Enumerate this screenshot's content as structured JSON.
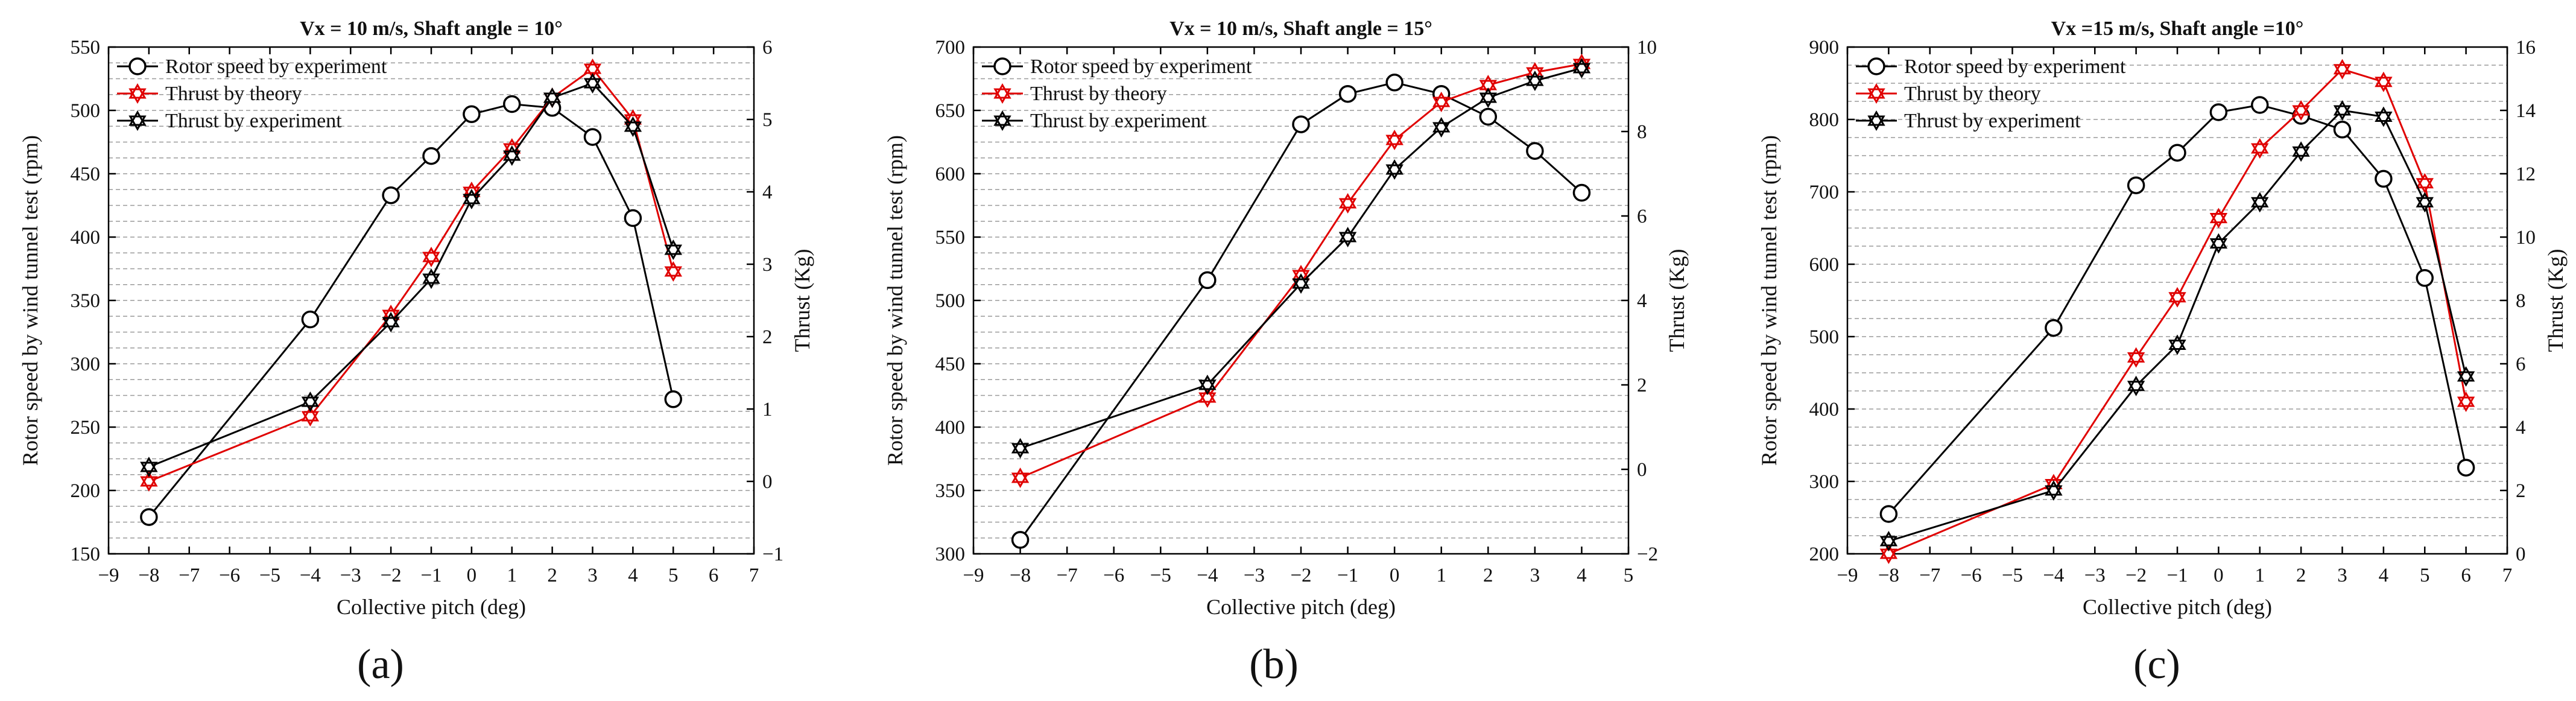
{
  "figure": {
    "captions": [
      "(a)",
      "(b)",
      "(c)"
    ]
  },
  "chart_data": [
    {
      "type": "line",
      "title": "Vx = 10 m/s, Shaft angle = 10°",
      "xlabel": "Collective pitch (deg)",
      "ylabel": "Rotor speed by wind tunnel test (rpm)",
      "y2label": "Thrust (Kg)",
      "xlim": [
        -9,
        7
      ],
      "xticks": [
        -9,
        -8,
        -7,
        -6,
        -5,
        -4,
        -3,
        -2,
        -1,
        0,
        1,
        2,
        3,
        4,
        5,
        6,
        7
      ],
      "ylim": [
        150,
        550
      ],
      "yticks": [
        150,
        200,
        250,
        300,
        350,
        400,
        450,
        500,
        550
      ],
      "y2lim": [
        -1,
        6
      ],
      "y2ticks": [
        -1,
        0,
        1,
        2,
        3,
        4,
        5,
        6
      ],
      "legend": [
        "Rotor speed by experiment",
        "Thrust by theory",
        "Thrust by experiment"
      ],
      "legend_position": "top-left",
      "grid": "horizontal dashed",
      "x": [
        -8,
        -4,
        -2,
        -1,
        0,
        1,
        2,
        3,
        4,
        5
      ],
      "series": [
        {
          "name": "Rotor speed by experiment",
          "axis": "left",
          "color": "#000000",
          "marker": "circle",
          "values": [
            179,
            335,
            433,
            464,
            497,
            505,
            502,
            479,
            415,
            272
          ]
        },
        {
          "name": "Thrust by theory",
          "axis": "right",
          "color": "#e00000",
          "marker": "star",
          "values": [
            0.0,
            0.9,
            2.3,
            3.1,
            4.0,
            4.6,
            5.3,
            5.7,
            5.0,
            2.9
          ]
        },
        {
          "name": "Thrust by experiment",
          "axis": "right",
          "color": "#000000",
          "marker": "star",
          "values": [
            0.2,
            1.1,
            2.2,
            2.8,
            3.9,
            4.5,
            5.3,
            5.5,
            4.9,
            3.2
          ]
        }
      ]
    },
    {
      "type": "line",
      "title": "Vx = 10 m/s, Shaft angle = 15°",
      "xlabel": "Collective pitch (deg)",
      "ylabel": "Rotor speed by wind tunnel test (rpm)",
      "y2label": "Thrust (Kg)",
      "xlim": [
        -9,
        5
      ],
      "xticks": [
        -9,
        -8,
        -7,
        -6,
        -5,
        -4,
        -3,
        -2,
        -1,
        0,
        1,
        2,
        3,
        4,
        5
      ],
      "ylim": [
        300,
        700
      ],
      "yticks": [
        300,
        350,
        400,
        450,
        500,
        550,
        600,
        650,
        700
      ],
      "y2lim": [
        -2,
        10
      ],
      "y2ticks": [
        -2,
        0,
        2,
        4,
        6,
        8,
        10
      ],
      "legend": [
        "Rotor speed by experiment",
        "Thrust by theory",
        "Thrust by experiment"
      ],
      "legend_position": "top-left",
      "grid": "horizontal dashed",
      "x": [
        -8,
        -4,
        -2,
        -1,
        0,
        1,
        2,
        3,
        4
      ],
      "series": [
        {
          "name": "Rotor speed by experiment",
          "axis": "left",
          "color": "#000000",
          "marker": "circle",
          "values": [
            311,
            516,
            639,
            663,
            672,
            663,
            645,
            618,
            585
          ]
        },
        {
          "name": "Thrust by theory",
          "axis": "right",
          "color": "#e00000",
          "marker": "star",
          "values": [
            -0.2,
            1.7,
            4.6,
            6.3,
            7.8,
            8.7,
            9.1,
            9.4,
            9.6
          ]
        },
        {
          "name": "Thrust by experiment",
          "axis": "right",
          "color": "#000000",
          "marker": "star",
          "values": [
            0.5,
            2.0,
            4.4,
            5.5,
            7.1,
            8.1,
            8.8,
            9.2,
            9.5
          ]
        }
      ]
    },
    {
      "type": "line",
      "title": "Vx =15 m/s, Shaft angle =10°",
      "xlabel": "Collective pitch (deg)",
      "ylabel": "Rotor speed by wind tunnel test (rpm)",
      "y2label": "Thrust (Kg)",
      "xlim": [
        -9,
        7
      ],
      "xticks": [
        -9,
        -8,
        -7,
        -6,
        -5,
        -4,
        -3,
        -2,
        -1,
        0,
        1,
        2,
        3,
        4,
        5,
        6,
        7
      ],
      "ylim": [
        200,
        900
      ],
      "yticks": [
        200,
        300,
        400,
        500,
        600,
        700,
        800,
        900
      ],
      "y2lim": [
        0,
        16
      ],
      "y2ticks": [
        0,
        2,
        4,
        6,
        8,
        10,
        12,
        14,
        16
      ],
      "legend": [
        "Rotor speed by experiment",
        "Thrust by theory",
        "Thrust by experiment"
      ],
      "legend_position": "top-left",
      "grid": "horizontal dashed",
      "x": [
        -8,
        -4,
        -2,
        -1,
        0,
        1,
        2,
        3,
        4,
        5,
        6
      ],
      "series": [
        {
          "name": "Rotor speed by experiment",
          "axis": "left",
          "color": "#000000",
          "marker": "circle",
          "values": [
            255,
            512,
            709,
            754,
            810,
            820,
            805,
            786,
            718,
            581,
            319
          ]
        },
        {
          "name": "Thrust by theory",
          "axis": "right",
          "color": "#e00000",
          "marker": "star",
          "values": [
            0.0,
            2.2,
            6.2,
            8.1,
            10.6,
            12.8,
            14.0,
            15.3,
            14.9,
            11.7,
            4.8
          ]
        },
        {
          "name": "Thrust by experiment",
          "axis": "right",
          "color": "#000000",
          "marker": "star",
          "values": [
            0.4,
            2.0,
            5.3,
            6.6,
            9.8,
            11.1,
            12.7,
            14.0,
            13.8,
            11.1,
            5.6
          ]
        }
      ]
    }
  ]
}
